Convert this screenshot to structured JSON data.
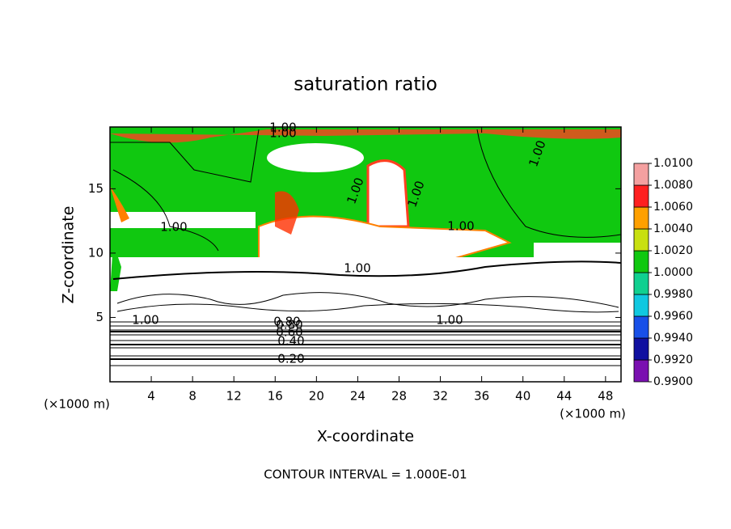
{
  "chart_data": {
    "type": "contour",
    "title": "saturation ratio",
    "x_label": "X-coordinate",
    "y_label": "Z-coordinate",
    "x_unit": "(×1000 m)",
    "y_unit": "(×1000 m)",
    "footnote": "CONTOUR INTERVAL = 1.000E-01",
    "xlim": [
      0,
      49.5
    ],
    "xticks": [
      4,
      8,
      12,
      16,
      20,
      24,
      28,
      32,
      36,
      40,
      44,
      48
    ],
    "ylim": [
      0,
      19.8
    ],
    "yticks": [
      5,
      10,
      15
    ],
    "contour_labels": [
      "0.20",
      "0.40",
      "0.60",
      "0.80",
      "1.00",
      "1.00",
      "1.00",
      "1.00",
      "1.00",
      "1.00",
      "1.00",
      "1.00",
      "1.00",
      "1.00",
      "0.80"
    ],
    "colorbar": {
      "ticks": [
        {
          "value": 0.99,
          "label": "0.9900"
        },
        {
          "value": 0.992,
          "label": "0.9920"
        },
        {
          "value": 0.994,
          "label": "0.9940"
        },
        {
          "value": 0.996,
          "label": "0.9960"
        },
        {
          "value": 0.998,
          "label": "0.9980"
        },
        {
          "value": 1.0,
          "label": "1.0000"
        },
        {
          "value": 1.002,
          "label": "1.0020"
        },
        {
          "value": 1.004,
          "label": "1.0040"
        },
        {
          "value": 1.006,
          "label": "1.0060"
        },
        {
          "value": 1.008,
          "label": "1.0080"
        },
        {
          "value": 1.01,
          "label": "1.0100"
        }
      ],
      "colors": [
        "#7a10b0",
        "#1010a0",
        "#1850e8",
        "#10c8e0",
        "#10d090",
        "#10c810",
        "#c8e010",
        "#ffa000",
        "#ff2020",
        "#f4a0a0"
      ]
    }
  }
}
